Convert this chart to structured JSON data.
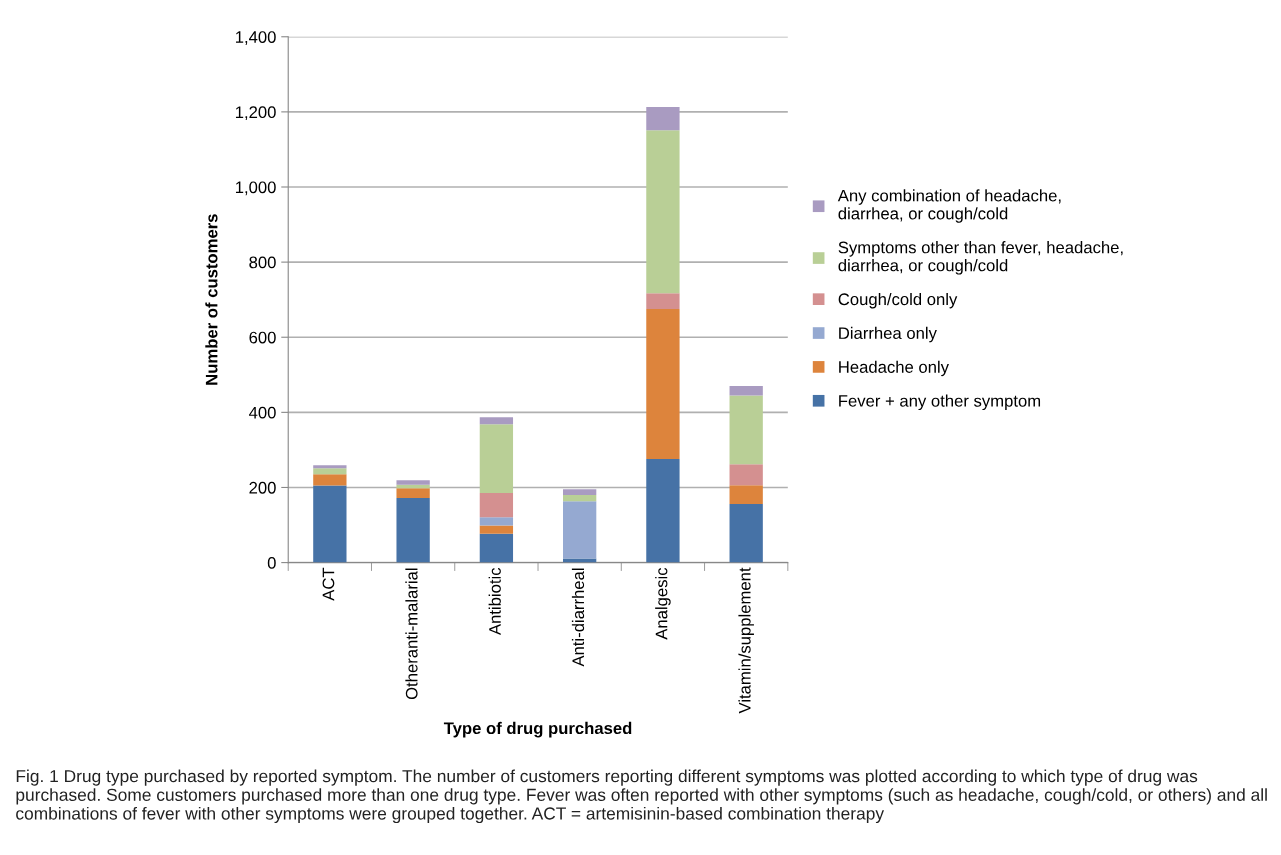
{
  "chart_data": {
    "type": "bar",
    "stacked": true,
    "xlabel": "Type of drug purchased",
    "ylabel": "Number of customers",
    "categories": [
      "ACT",
      "Otheranti-malarial",
      "Antibiotic",
      "Anti-diarrheal",
      "Analgesic",
      "Vitamin/supplement"
    ],
    "series": [
      {
        "name": "Fever + any other symptom",
        "color": "#4672a6",
        "values": [
          205,
          172,
          77,
          11,
          276,
          156
        ]
      },
      {
        "name": "Headache only",
        "color": "#dd843c",
        "values": [
          30,
          26,
          22,
          0,
          399,
          50
        ]
      },
      {
        "name": "Diarrhea only",
        "color": "#95a9d1",
        "values": [
          0,
          0,
          22,
          152,
          0,
          0
        ]
      },
      {
        "name": "Cough/cold only",
        "color": "#d49090",
        "values": [
          0,
          0,
          64,
          0,
          42,
          56
        ]
      },
      {
        "name": "Symptoms other than fever, headache, diarrhea, or cough/cold",
        "color": "#b9cf96",
        "values": [
          16,
          9,
          183,
          17,
          434,
          183
        ]
      },
      {
        "name": "Any combination of headache, diarrhea, or cough/cold",
        "color": "#a99bc1",
        "values": [
          8,
          12,
          19,
          15,
          62,
          25
        ]
      }
    ],
    "ylim": [
      0,
      1400
    ],
    "yticks": [
      0,
      {
        "value": 200,
        "label": "200"
      },
      {
        "value": 400,
        "label": "400"
      },
      {
        "value": 600,
        "label": "600"
      },
      {
        "value": 800,
        "label": "800"
      },
      {
        "value": 1000,
        "label": "1,000"
      },
      {
        "value": 1200,
        "label": "1,200"
      },
      {
        "value": 1400,
        "label": "1,400"
      }
    ],
    "grid": "y",
    "legend": "right",
    "annotations": [
      "Fig. 1 Drug type purchased by reported symptom. The number of customers reporting different symptoms was plotted according to which type of drug was purchased. Some customers purchased more than one drug type. Fever was often reported with other symptoms (such as headache, cough/cold, or others) and all combinations of fever with other symptoms were grouped together. ACT = artemisinin-based combination therapy"
    ]
  }
}
